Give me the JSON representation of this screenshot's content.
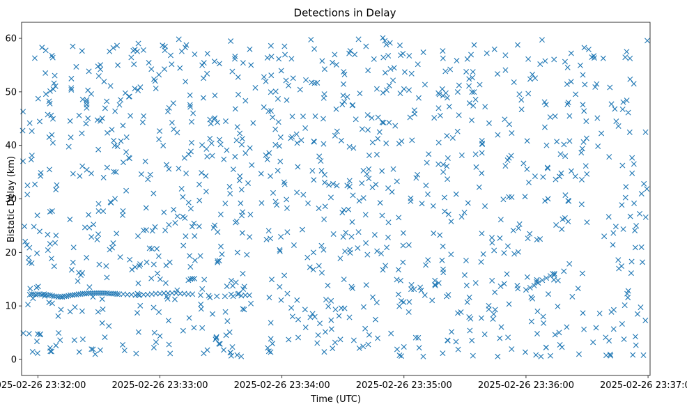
{
  "chart_data": {
    "type": "scatter",
    "title": "Detections in Delay",
    "xlabel": "Time (UTC)",
    "ylabel": "Bistatic Delay (km)",
    "marker": "x",
    "color": "#1f77b4",
    "x_unit": "seconds after 2025-02-26 23:31:00 UTC",
    "xlim": [
      52,
      361
    ],
    "ylim": [
      -3,
      63
    ],
    "x_ticks": [
      {
        "value": 60,
        "label": "2025-02-26 23:32:00"
      },
      {
        "value": 120,
        "label": "2025-02-26 23:33:00"
      },
      {
        "value": 180,
        "label": "2025-02-26 23:34:00"
      },
      {
        "value": 240,
        "label": "2025-02-26 23:35:00"
      },
      {
        "value": 300,
        "label": "2025-02-26 23:36:00"
      },
      {
        "value": 360,
        "label": "2025-02-26 23:37:00"
      }
    ],
    "y_ticks": [
      {
        "value": 0,
        "label": "0"
      },
      {
        "value": 10,
        "label": "10"
      },
      {
        "value": 20,
        "label": "20"
      },
      {
        "value": 30,
        "label": "30"
      },
      {
        "value": 40,
        "label": "40"
      },
      {
        "value": 50,
        "label": "50"
      },
      {
        "value": 60,
        "label": "60"
      }
    ],
    "tracks": [
      {
        "name": "target track near 12 km",
        "points": [
          [
            56,
            12.1
          ],
          [
            57,
            12.2
          ],
          [
            58,
            12.2
          ],
          [
            59,
            12.1
          ],
          [
            60,
            12.2
          ],
          [
            61,
            12.2
          ],
          [
            62,
            12.1
          ],
          [
            63,
            12.2
          ],
          [
            64,
            12.1
          ],
          [
            65,
            12.0
          ],
          [
            66,
            12.0
          ],
          [
            67,
            11.9
          ],
          [
            68,
            11.8
          ],
          [
            69,
            11.8
          ],
          [
            70,
            11.7
          ],
          [
            71,
            11.7
          ],
          [
            72,
            11.7
          ],
          [
            73,
            11.8
          ],
          [
            74,
            11.8
          ],
          [
            75,
            11.9
          ],
          [
            76,
            12.0
          ],
          [
            77,
            12.0
          ],
          [
            78,
            12.1
          ],
          [
            79,
            12.1
          ],
          [
            80,
            12.2
          ],
          [
            81,
            12.2
          ],
          [
            82,
            12.3
          ],
          [
            83,
            12.3
          ],
          [
            84,
            12.3
          ],
          [
            85,
            12.4
          ],
          [
            86,
            12.4
          ],
          [
            87,
            12.4
          ],
          [
            88,
            12.4
          ],
          [
            89,
            12.4
          ],
          [
            90,
            12.4
          ],
          [
            91,
            12.4
          ],
          [
            92,
            12.4
          ],
          [
            93,
            12.4
          ],
          [
            94,
            12.4
          ],
          [
            95,
            12.3
          ],
          [
            96,
            12.3
          ],
          [
            97,
            12.3
          ],
          [
            98,
            12.3
          ],
          [
            99,
            12.2
          ],
          [
            100,
            12.2
          ],
          [
            102,
            12.2
          ],
          [
            104,
            12.1
          ],
          [
            106,
            12.1
          ],
          [
            108,
            12.0
          ],
          [
            110,
            12.0
          ],
          [
            112,
            12.1
          ],
          [
            114,
            12.1
          ],
          [
            116,
            12.2
          ],
          [
            118,
            12.3
          ],
          [
            120,
            12.3
          ],
          [
            122,
            12.4
          ],
          [
            124,
            12.4
          ],
          [
            126,
            12.4
          ],
          [
            128,
            12.4
          ],
          [
            130,
            12.3
          ],
          [
            132,
            12.3
          ],
          [
            134,
            12.2
          ],
          [
            136,
            12.2
          ],
          [
            140,
            12.0
          ],
          [
            144,
            11.9
          ],
          [
            148,
            11.8
          ],
          [
            152,
            11.8
          ],
          [
            156,
            11.8
          ],
          [
            160,
            11.9
          ],
          [
            162,
            12.0
          ],
          [
            164,
            12.0
          ]
        ]
      },
      {
        "name": "rising track",
        "points": [
          [
            300,
            13.0
          ],
          [
            302,
            13.4
          ],
          [
            304,
            13.8
          ],
          [
            306,
            14.3
          ],
          [
            308,
            14.8
          ],
          [
            310,
            15.2
          ],
          [
            312,
            15.6
          ],
          [
            314,
            16.0
          ]
        ]
      },
      {
        "name": "short track near 15 km",
        "points": [
          [
            134,
            14.8
          ],
          [
            135,
            15.0
          ],
          [
            136,
            15.1
          ],
          [
            137,
            15.1
          ]
        ]
      },
      {
        "name": "short track near 47 km",
        "points": [
          [
            84,
            47.0
          ],
          [
            84,
            47.6
          ],
          [
            84,
            48.1
          ],
          [
            84,
            48.5
          ]
        ]
      }
    ],
    "noise_summary": "About 1100 uniformly scattered false detections spanning the full time range (23:31:52 to 23:36:59) and delays from 0.5 to 60 km."
  }
}
